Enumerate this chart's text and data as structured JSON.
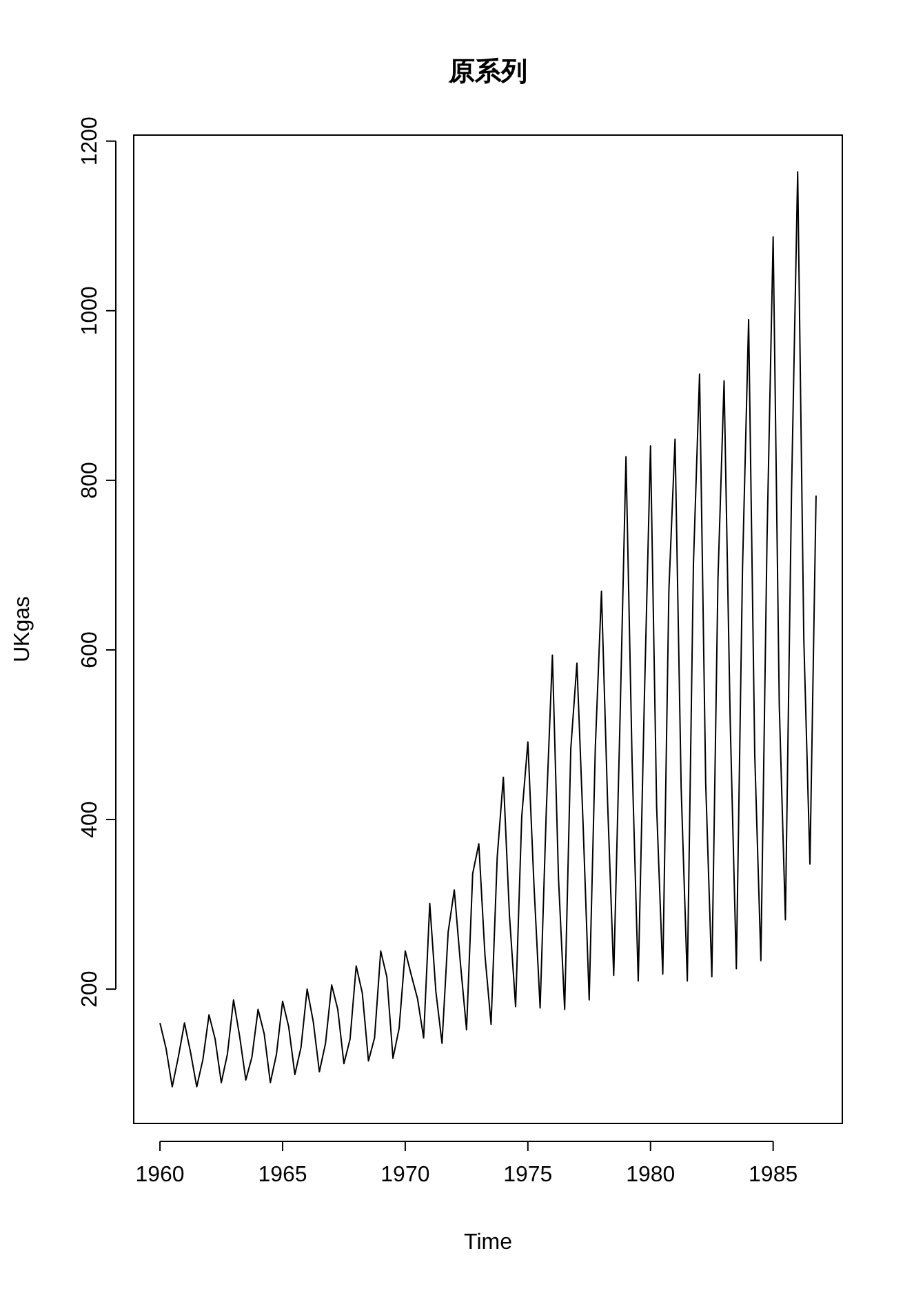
{
  "chart_data": {
    "type": "line",
    "title": "原系列",
    "xlabel": "Time",
    "ylabel": "UKgas",
    "color": "#000000",
    "x": [
      1960,
      1960.25,
      1960.5,
      1960.75,
      1961,
      1961.25,
      1961.5,
      1961.75,
      1962,
      1962.25,
      1962.5,
      1962.75,
      1963,
      1963.25,
      1963.5,
      1963.75,
      1964,
      1964.25,
      1964.5,
      1964.75,
      1965,
      1965.25,
      1965.5,
      1965.75,
      1966,
      1966.25,
      1966.5,
      1966.75,
      1967,
      1967.25,
      1967.5,
      1967.75,
      1968,
      1968.25,
      1968.5,
      1968.75,
      1969,
      1969.25,
      1969.5,
      1969.75,
      1970,
      1970.25,
      1970.5,
      1970.75,
      1971,
      1971.25,
      1971.5,
      1971.75,
      1972,
      1972.25,
      1972.5,
      1972.75,
      1973,
      1973.25,
      1973.5,
      1973.75,
      1974,
      1974.25,
      1974.5,
      1974.75,
      1975,
      1975.25,
      1975.5,
      1975.75,
      1976,
      1976.25,
      1976.5,
      1976.75,
      1977,
      1977.25,
      1977.5,
      1977.75,
      1978,
      1978.25,
      1978.5,
      1978.75,
      1979,
      1979.25,
      1979.5,
      1979.75,
      1980,
      1980.25,
      1980.5,
      1980.75,
      1981,
      1981.25,
      1981.5,
      1981.75,
      1982,
      1982.25,
      1982.5,
      1982.75,
      1983,
      1983.25,
      1983.5,
      1983.75,
      1984,
      1984.25,
      1984.5,
      1984.75,
      1985,
      1985.25,
      1985.5,
      1985.75,
      1986,
      1986.25,
      1986.5,
      1986.75
    ],
    "values": [
      160.1,
      129.7,
      84.8,
      120.1,
      160.1,
      124.9,
      84.8,
      116.9,
      169.7,
      140.9,
      89.7,
      123.3,
      187.3,
      144.1,
      92.9,
      120.1,
      176.1,
      147.3,
      89.7,
      123.3,
      185.7,
      155.3,
      99.3,
      131.3,
      200.1,
      161.7,
      102.5,
      136.1,
      204.9,
      176.1,
      112.1,
      140.9,
      227.3,
      195.3,
      115.3,
      142.5,
      244.9,
      214.5,
      118.5,
      153.7,
      244.9,
      216.1,
      188.9,
      142.5,
      301.0,
      196.9,
      136.1,
      267.3,
      317.0,
      230.5,
      152.1,
      336.2,
      371.4,
      240.1,
      158.5,
      355.4,
      449.9,
      286.6,
      179.3,
      403.4,
      491.5,
      321.8,
      177.7,
      409.8,
      593.9,
      329.8,
      176.1,
      483.5,
      584.3,
      395.4,
      187.3,
      485.1,
      669.2,
      421.0,
      216.1,
      509.1,
      827.7,
      467.5,
      209.7,
      542.7,
      840.5,
      414.6,
      217.7,
      670.8,
      848.5,
      437.0,
      209.7,
      701.2,
      925.3,
      443.4,
      214.5,
      683.6,
      917.3,
      515.5,
      224.1,
      694.8,
      989.4,
      477.1,
      233.7,
      730.0,
      1087.0,
      534.7,
      281.8,
      787.6,
      1163.9,
      613.1,
      347.4,
      782.0
    ],
    "xlim": [
      1958.93,
      1987.82
    ],
    "ylim": [
      41.6,
      1207.1
    ],
    "xticks": [
      1960,
      1965,
      1970,
      1975,
      1980,
      1985
    ],
    "yticks": [
      200,
      400,
      600,
      800,
      1000,
      1200
    ]
  }
}
